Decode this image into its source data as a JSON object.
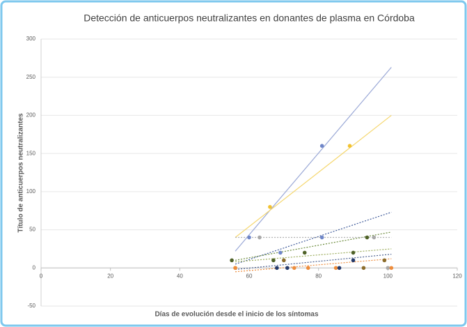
{
  "chart_data": {
    "type": "scatter",
    "title": "Detección de anticuerpos neutralizantes en donantes de plasma en Córdoba",
    "xlabel": "Días de evolución desde el inicio de los síntomas",
    "ylabel": "Título de anticuerpos neutralizantes",
    "xlim": [
      0,
      120
    ],
    "xticks": [
      0,
      20,
      40,
      60,
      80,
      100,
      120
    ],
    "ylim": [
      -50,
      300
    ],
    "yticks": [
      -50,
      0,
      50,
      100,
      150,
      200,
      250,
      300
    ],
    "grid": true,
    "series": [
      {
        "color": "#6f86c8",
        "x": [
          60,
          81,
          81,
          69
        ],
        "values": [
          40,
          160,
          40,
          20
        ]
      },
      {
        "color": "#f2c230",
        "x": [
          66,
          89,
          56
        ],
        "values": [
          80,
          160,
          0
        ]
      },
      {
        "color": "#a9a9a9",
        "x": [
          63,
          96,
          100
        ],
        "values": [
          40,
          40,
          0
        ]
      },
      {
        "color": "#ed8c3c",
        "x": [
          56,
          73,
          77,
          85,
          101
        ],
        "values": [
          0,
          0,
          0,
          0,
          0
        ]
      },
      {
        "color": "#4f6228",
        "x": [
          55,
          67,
          76,
          90,
          94
        ],
        "values": [
          10,
          10,
          20,
          20,
          40
        ]
      },
      {
        "color": "#253a6b",
        "x": [
          68,
          71,
          90,
          86
        ],
        "values": [
          0,
          0,
          10,
          0
        ]
      },
      {
        "color": "#8c6d2c",
        "x": [
          70,
          99,
          93
        ],
        "values": [
          10,
          10,
          0
        ]
      }
    ],
    "trendlines": [
      {
        "color": "#9aa8d6",
        "x": [
          56,
          101
        ],
        "y": [
          22,
          263
        ]
      },
      {
        "color": "#f5d76e",
        "x": [
          56,
          101
        ],
        "y": [
          40,
          200
        ]
      },
      {
        "color": "#3e5a9a",
        "x": [
          56,
          101
        ],
        "y": [
          5,
          73
        ]
      },
      {
        "color": "#6a8a3a",
        "x": [
          56,
          101
        ],
        "y": [
          10,
          47
        ]
      },
      {
        "color": "#9aab5a",
        "x": [
          56,
          101
        ],
        "y": [
          8,
          25
        ]
      },
      {
        "color": "#ed8c3c",
        "x": [
          56,
          101
        ],
        "y": [
          -5,
          12
        ]
      },
      {
        "color": "#b0b0b0",
        "x": [
          56,
          101
        ],
        "y": [
          40,
          40
        ]
      },
      {
        "color": "#4a5f8f",
        "x": [
          56,
          101
        ],
        "y": [
          -2,
          18
        ]
      }
    ]
  }
}
